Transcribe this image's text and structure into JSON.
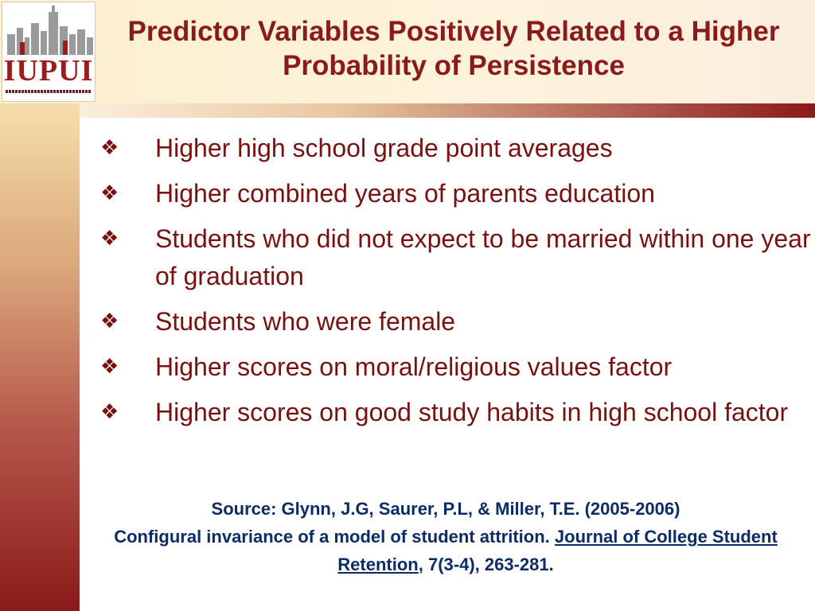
{
  "logo": {
    "text": "IUPUI",
    "icon": "city-skyline-icon"
  },
  "title": "Predictor Variables Positively Related to a Higher Probability of Persistence",
  "bullet_icon": "❖",
  "bullets": [
    "Higher high school grade point averages",
    "Higher combined years of parents education",
    "Students who did not expect to be married within one year of graduation",
    "Students who were female",
    "Higher scores on moral/religious values factor",
    "Higher scores on good study habits in high school factor"
  ],
  "source": {
    "line1": "Source: Glynn, J.G, Saurer, P.L, & Miller, T.E. (2005-2006)",
    "line2_prefix": "Configural invariance of a model of student attrition.",
    "journal": "Journal of College Student Retention",
    "suffix": ", 7(3-4), 263-281."
  },
  "colors": {
    "title": "#8b1a1a",
    "bullets": "#7a1111",
    "source": "#0d2b66"
  }
}
